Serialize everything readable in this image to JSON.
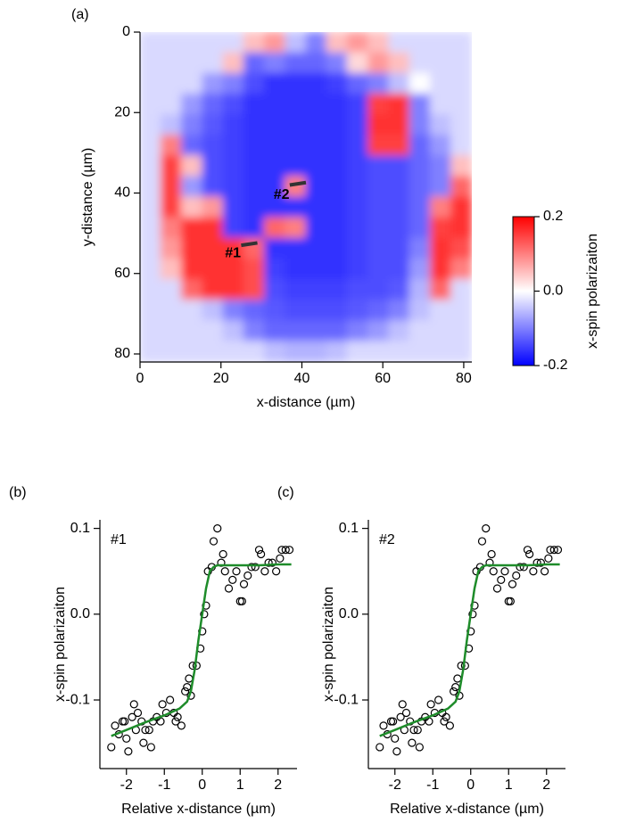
{
  "chart_data": [
    {
      "type": "heatmap",
      "label": "(a)",
      "xlabel": "x-distance (µm)",
      "ylabel": "y-distance (µm)",
      "xlim": [
        0,
        82
      ],
      "ylim": [
        0,
        82
      ],
      "yreverse": true,
      "xticks": [
        0,
        20,
        40,
        60,
        80
      ],
      "yticks": [
        0,
        20,
        40,
        60,
        80
      ],
      "annotations": [
        "#1",
        "#2"
      ],
      "colors": [
        "#0000ff",
        "#ffffff",
        "#ff0000"
      ],
      "colorbar": {
        "label": "x-spin polarizaiton",
        "lim": [
          -0.2,
          0.2
        ],
        "ticks": [
          0.2,
          {
            "value": 0,
            "label": "0.0"
          },
          -0.2
        ]
      },
      "z": [
        [
          -0.03,
          -0.03,
          -0.03,
          -0.03,
          -0.03,
          0.05,
          0.08,
          -0.05,
          -0.1,
          0.05,
          0.08,
          0.05,
          -0.03,
          -0.03,
          -0.03,
          -0.03
        ],
        [
          -0.03,
          -0.03,
          -0.03,
          -0.03,
          0.05,
          -0.12,
          -0.1,
          -0.12,
          -0.12,
          -0.1,
          0.03,
          0.08,
          0.05,
          -0.03,
          -0.03,
          -0.03
        ],
        [
          -0.03,
          -0.03,
          -0.03,
          -0.08,
          -0.1,
          -0.14,
          -0.16,
          -0.16,
          -0.16,
          -0.15,
          -0.12,
          -0.1,
          -0.05,
          0.0,
          -0.03,
          -0.03
        ],
        [
          -0.03,
          -0.03,
          -0.08,
          -0.12,
          -0.14,
          -0.16,
          -0.16,
          -0.16,
          -0.16,
          -0.16,
          -0.15,
          0.15,
          0.16,
          -0.1,
          -0.03,
          -0.03
        ],
        [
          -0.03,
          -0.05,
          -0.1,
          -0.13,
          -0.15,
          -0.16,
          -0.16,
          -0.16,
          -0.16,
          -0.16,
          -0.15,
          0.16,
          0.16,
          -0.1,
          -0.05,
          -0.03
        ],
        [
          -0.03,
          0.1,
          -0.12,
          -0.14,
          -0.15,
          -0.16,
          -0.16,
          -0.16,
          -0.16,
          -0.16,
          -0.15,
          0.15,
          0.15,
          -0.12,
          -0.08,
          -0.03
        ],
        [
          -0.03,
          0.15,
          0.05,
          -0.14,
          -0.15,
          -0.16,
          -0.16,
          -0.16,
          -0.16,
          -0.16,
          -0.15,
          -0.14,
          -0.14,
          -0.12,
          -0.1,
          0.05
        ],
        [
          -0.03,
          0.15,
          -0.08,
          -0.14,
          -0.15,
          -0.16,
          -0.16,
          0.1,
          -0.16,
          -0.16,
          -0.15,
          -0.14,
          -0.14,
          -0.12,
          -0.1,
          0.12
        ],
        [
          -0.03,
          0.15,
          0.05,
          0.08,
          -0.15,
          -0.16,
          -0.16,
          -0.16,
          -0.16,
          -0.16,
          -0.15,
          -0.14,
          -0.14,
          -0.12,
          0.1,
          0.16
        ],
        [
          -0.03,
          0.1,
          0.16,
          0.16,
          -0.15,
          -0.16,
          0.12,
          0.1,
          -0.16,
          -0.16,
          -0.15,
          -0.14,
          -0.14,
          -0.12,
          0.15,
          0.16
        ],
        [
          -0.03,
          0.08,
          0.16,
          0.16,
          0.16,
          0.12,
          -0.16,
          -0.16,
          -0.16,
          -0.16,
          -0.15,
          -0.14,
          -0.14,
          -0.1,
          0.16,
          0.14
        ],
        [
          -0.03,
          0.05,
          0.16,
          0.16,
          0.16,
          0.14,
          -0.15,
          -0.16,
          -0.16,
          -0.16,
          -0.15,
          -0.14,
          -0.14,
          -0.08,
          0.16,
          0.1
        ],
        [
          -0.03,
          -0.03,
          0.12,
          0.16,
          0.16,
          0.14,
          -0.14,
          -0.15,
          -0.15,
          -0.15,
          -0.14,
          -0.14,
          -0.13,
          -0.06,
          0.12,
          -0.03
        ],
        [
          -0.03,
          -0.03,
          -0.03,
          -0.05,
          -0.1,
          -0.12,
          -0.13,
          -0.14,
          -0.14,
          -0.14,
          -0.13,
          -0.12,
          -0.1,
          -0.05,
          -0.03,
          -0.03
        ],
        [
          -0.03,
          -0.03,
          -0.03,
          -0.03,
          -0.05,
          -0.1,
          -0.12,
          -0.12,
          -0.12,
          -0.12,
          -0.1,
          -0.08,
          -0.05,
          -0.03,
          -0.03,
          -0.03
        ],
        [
          -0.03,
          -0.03,
          -0.03,
          -0.03,
          -0.03,
          -0.03,
          -0.05,
          -0.06,
          -0.06,
          -0.05,
          -0.03,
          -0.03,
          -0.03,
          -0.03,
          -0.03,
          -0.03
        ]
      ]
    },
    {
      "type": "scatter",
      "label": "(b)",
      "annotation": "#1",
      "xlabel": "Relative x-distance (µm)",
      "ylabel": "x-spin polarizaiton",
      "xlim": [
        -2.7,
        2.5
      ],
      "ylim": [
        -0.18,
        0.11
      ],
      "xticks": [
        -2,
        -1,
        0,
        1,
        2
      ],
      "yticks": [
        -0.1,
        {
          "value": 0,
          "label": "0.0"
        },
        0.1
      ],
      "series": [
        {
          "type": "scatter",
          "color": "#000000",
          "x": [
            -2.4,
            -2.3,
            -2.2,
            -2.1,
            -2.05,
            -2.0,
            -1.95,
            -1.85,
            -1.8,
            -1.75,
            -1.7,
            -1.6,
            -1.55,
            -1.5,
            -1.4,
            -1.35,
            -1.3,
            -1.2,
            -1.1,
            -1.05,
            -0.95,
            -0.85,
            -0.75,
            -0.7,
            -0.65,
            -0.55,
            -0.45,
            -0.4,
            -0.35,
            -0.3,
            -0.25,
            -0.15,
            -0.05,
            0.0,
            0.05,
            0.1,
            0.15,
            0.25,
            0.3,
            0.4,
            0.5,
            0.55,
            0.6,
            0.7,
            0.8,
            0.9,
            1.0,
            1.05,
            1.1,
            1.2,
            1.3,
            1.4,
            1.5,
            1.55,
            1.65,
            1.75,
            1.85,
            1.95,
            2.05,
            2.1,
            2.2,
            2.3
          ],
          "values": [
            -0.155,
            -0.13,
            -0.14,
            -0.125,
            -0.125,
            -0.145,
            -0.16,
            -0.12,
            -0.105,
            -0.135,
            -0.115,
            -0.125,
            -0.15,
            -0.135,
            -0.135,
            -0.155,
            -0.125,
            -0.12,
            -0.125,
            -0.105,
            -0.115,
            -0.1,
            -0.115,
            -0.125,
            -0.12,
            -0.13,
            -0.09,
            -0.085,
            -0.075,
            -0.095,
            -0.06,
            -0.06,
            -0.04,
            -0.02,
            0.0,
            0.01,
            0.05,
            0.055,
            0.085,
            0.1,
            0.06,
            0.07,
            0.05,
            0.03,
            0.04,
            0.05,
            0.015,
            0.015,
            0.035,
            0.045,
            0.055,
            0.055,
            0.075,
            0.07,
            0.05,
            0.06,
            0.06,
            0.05,
            0.065,
            0.075,
            0.075,
            0.075
          ]
        },
        {
          "type": "line",
          "color": "#1e8c2a",
          "x": [
            -2.4,
            -2.0,
            -1.5,
            -1.0,
            -0.6,
            -0.4,
            -0.3,
            -0.2,
            -0.1,
            0,
            0.1,
            0.2,
            0.3,
            0.4,
            0.6,
            1.0,
            1.5,
            2.0,
            2.35
          ],
          "values": [
            -0.142,
            -0.135,
            -0.126,
            -0.118,
            -0.11,
            -0.102,
            -0.09,
            -0.065,
            -0.03,
            0.0,
            0.03,
            0.05,
            0.055,
            0.057,
            0.057,
            0.057,
            0.057,
            0.058,
            0.058
          ]
        }
      ]
    },
    {
      "type": "scatter",
      "label": "(c)",
      "annotation": "#2",
      "xlabel": "Relative x-distance (µm)",
      "ylabel": "x-spin polarizaiton",
      "xlim": [
        -2.7,
        2.5
      ],
      "ylim": [
        -0.18,
        0.11
      ],
      "xticks": [
        -2,
        -1,
        0,
        1,
        2
      ],
      "yticks": [
        -0.1,
        {
          "value": 0,
          "label": "0.0"
        },
        0.1
      ],
      "series": [
        {
          "type": "scatter",
          "color": "#000000",
          "x": [
            -2.4,
            -2.3,
            -2.2,
            -2.1,
            -2.05,
            -2.0,
            -1.95,
            -1.85,
            -1.8,
            -1.75,
            -1.7,
            -1.6,
            -1.55,
            -1.5,
            -1.4,
            -1.35,
            -1.3,
            -1.2,
            -1.1,
            -1.05,
            -0.95,
            -0.85,
            -0.75,
            -0.7,
            -0.65,
            -0.55,
            -0.45,
            -0.4,
            -0.35,
            -0.3,
            -0.25,
            -0.15,
            -0.05,
            0.0,
            0.05,
            0.1,
            0.15,
            0.25,
            0.3,
            0.4,
            0.5,
            0.55,
            0.6,
            0.7,
            0.8,
            0.9,
            1.0,
            1.05,
            1.1,
            1.2,
            1.3,
            1.4,
            1.5,
            1.55,
            1.65,
            1.75,
            1.85,
            1.95,
            2.05,
            2.1,
            2.2,
            2.3
          ],
          "values": [
            -0.155,
            -0.13,
            -0.14,
            -0.125,
            -0.125,
            -0.145,
            -0.16,
            -0.12,
            -0.105,
            -0.135,
            -0.115,
            -0.125,
            -0.15,
            -0.135,
            -0.135,
            -0.155,
            -0.125,
            -0.12,
            -0.125,
            -0.105,
            -0.115,
            -0.1,
            -0.115,
            -0.125,
            -0.12,
            -0.13,
            -0.09,
            -0.085,
            -0.075,
            -0.095,
            -0.06,
            -0.06,
            -0.04,
            -0.02,
            0.0,
            0.01,
            0.05,
            0.055,
            0.085,
            0.1,
            0.06,
            0.07,
            0.05,
            0.03,
            0.04,
            0.05,
            0.015,
            0.015,
            0.035,
            0.045,
            0.055,
            0.055,
            0.075,
            0.07,
            0.05,
            0.06,
            0.06,
            0.05,
            0.065,
            0.075,
            0.075,
            0.075
          ]
        },
        {
          "type": "line",
          "color": "#1e8c2a",
          "x": [
            -2.4,
            -2.0,
            -1.5,
            -1.0,
            -0.6,
            -0.4,
            -0.3,
            -0.2,
            -0.1,
            0,
            0.1,
            0.2,
            0.3,
            0.4,
            0.6,
            1.0,
            1.5,
            2.0,
            2.35
          ],
          "values": [
            -0.142,
            -0.135,
            -0.126,
            -0.118,
            -0.11,
            -0.102,
            -0.09,
            -0.065,
            -0.03,
            0.0,
            0.03,
            0.05,
            0.055,
            0.057,
            0.057,
            0.057,
            0.057,
            0.058,
            0.058
          ]
        }
      ]
    }
  ]
}
